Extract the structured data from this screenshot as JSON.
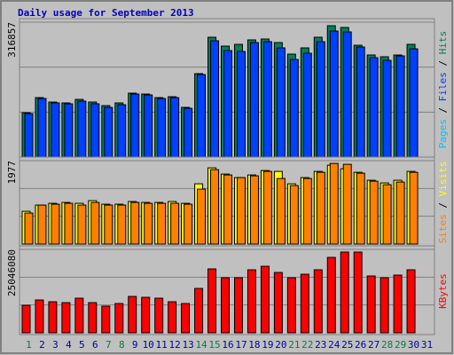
{
  "chart_data": [
    {
      "type": "bar",
      "title": "Daily usage for September 2013",
      "ylim": [
        0,
        316857
      ],
      "yticks": [
        316857
      ],
      "legend_separator": " / ",
      "series": [
        {
          "name": "Hits",
          "color": "#00805c",
          "values": [
            104250,
            139695,
            129270,
            127185,
            135525,
            129270,
            120930,
            127185,
            150120,
            148035,
            139695,
            141780,
            116760,
            195990,
            281475,
            260625,
            264795,
            275220,
            277305,
            268965,
            241860,
            256455,
            281475,
            308580,
            304410,
            262710,
            239775,
            235605,
            239775,
            264795,
            0
          ]
        },
        {
          "name": "Files",
          "color": "#0040ff",
          "values": [
            102165,
            137610,
            127185,
            125100,
            131355,
            125100,
            116760,
            123015,
            148035,
            145950,
            137610,
            139695,
            114675,
            193905,
            273135,
            250200,
            248115,
            268965,
            271050,
            256455,
            229350,
            243945,
            271050,
            296070,
            293985,
            258540,
            233520,
            227265,
            237690,
            254370,
            0
          ]
        },
        {
          "name": "Pages",
          "color": "#00c0ff",
          "values": [
            null,
            null,
            null,
            null,
            null,
            null,
            null,
            null,
            null,
            null,
            null,
            null,
            null,
            null,
            null,
            null,
            null,
            null,
            null,
            null,
            null,
            null,
            null,
            null,
            null,
            null,
            null,
            null,
            null,
            null,
            null
          ]
        }
      ]
    },
    {
      "type": "bar",
      "ylim": [
        0,
        1977
      ],
      "yticks": [
        1977
      ],
      "legend_separator": " / ",
      "series": [
        {
          "name": "Visits",
          "color": "#ffff00",
          "values": [
            777,
            924,
            966,
            987,
            966,
            1029,
            945,
            945,
            1008,
            987,
            987,
            1008,
            966,
            1428,
            1806,
            1659,
            1575,
            1638,
            1743,
            1722,
            1428,
            1575,
            1722,
            1869,
            1785,
            1701,
            1512,
            1449,
            1512,
            1722,
            0
          ]
        },
        {
          "name": "Sites",
          "color": "#ff8000",
          "values": [
            735,
            924,
            945,
            966,
            924,
            987,
            924,
            924,
            987,
            966,
            966,
            966,
            945,
            1302,
            1764,
            1638,
            1575,
            1617,
            1722,
            1554,
            1386,
            1554,
            1701,
            1911,
            1890,
            1680,
            1491,
            1407,
            1470,
            1701,
            0
          ]
        }
      ]
    },
    {
      "type": "bar",
      "ylim": [
        0,
        25046080
      ],
      "yticks": [
        25046080
      ],
      "categories": [
        "1",
        "2",
        "3",
        "4",
        "5",
        "6",
        "7",
        "8",
        "9",
        "10",
        "11",
        "12",
        "13",
        "14",
        "15",
        "16",
        "17",
        "18",
        "19",
        "20",
        "21",
        "22",
        "23",
        "24",
        "25",
        "26",
        "27",
        "28",
        "29",
        "30",
        "31"
      ],
      "category_colors": [
        "#008040",
        "#0000a0",
        "#0000a0",
        "#0000a0",
        "#0000a0",
        "#0000a0",
        "#008040",
        "#008040",
        "#0000a0",
        "#0000a0",
        "#0000a0",
        "#0000a0",
        "#0000a0",
        "#008040",
        "#008040",
        "#0000a0",
        "#0000a0",
        "#0000a0",
        "#0000a0",
        "#0000a0",
        "#008040",
        "#008040",
        "#0000a0",
        "#0000a0",
        "#0000a0",
        "#0000a0",
        "#0000a0",
        "#008040",
        "#008040",
        "#0000a0",
        "#0000a0"
      ],
      "series": [
        {
          "name": "KBytes",
          "color": "#ff0000",
          "values": [
            8259888,
            9858576,
            9325680,
            9059232,
            10391472,
            9059232,
            7993440,
            8792784,
            10924368,
            10657920,
            10391472,
            9325680,
            8792784,
            13322400,
            19184256,
            16519776,
            16519776,
            18917808,
            19983600,
            18118464,
            16519776,
            17585568,
            18917808,
            22648080,
            24246768,
            24246768,
            17052672,
            16519776,
            17319120,
            18917808,
            0
          ]
        }
      ]
    }
  ]
}
